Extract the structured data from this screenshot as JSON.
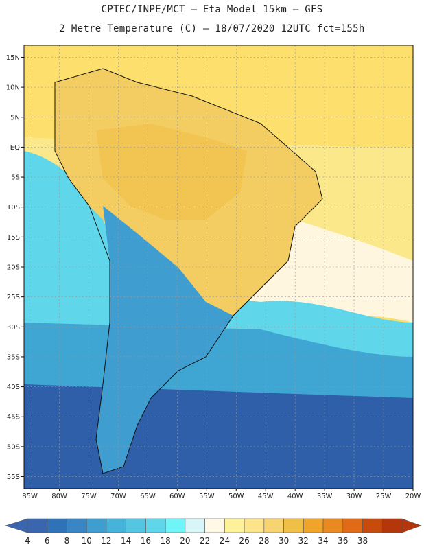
{
  "title_line1": "CPTEC/INPE/MCT –  Eta Model 15km – GFS",
  "title_line2": "2 Metre Temperature (C) – 18/07/2020 12UTC fct=155h",
  "lat_labels": [
    "15N",
    "10N",
    "5N",
    "EQ",
    "5S",
    "10S",
    "15S",
    "20S",
    "25S",
    "30S",
    "35S",
    "40S",
    "45S",
    "50S",
    "55S"
  ],
  "lon_labels": [
    "85W",
    "80W",
    "75W",
    "70W",
    "65W",
    "60W",
    "55W",
    "50W",
    "45W",
    "40W",
    "35W",
    "30W",
    "25W",
    "20W"
  ],
  "colorbar": {
    "labels": [
      "4",
      "6",
      "8",
      "10",
      "12",
      "14",
      "16",
      "18",
      "20",
      "22",
      "24",
      "26",
      "28",
      "30",
      "32",
      "34",
      "36",
      "38"
    ],
    "colors": [
      "#3a66b0",
      "#2f72b8",
      "#3a86c4",
      "#3f9dd0",
      "#46b3da",
      "#54c6e2",
      "#5fd6ea",
      "#6ff4f7",
      "#d8f6f8",
      "#fff8e6",
      "#fdf29a",
      "#fce48a",
      "#f8d372",
      "#f0bf46",
      "#f0a52a",
      "#e98a20",
      "#e06a16",
      "#c84a0c",
      "#b5360a"
    ]
  },
  "fills": {
    "ocean_warm": "#fddf6e",
    "ocean_tropical": "#fbe88a",
    "ocean_mild": "#fff6df",
    "ocean_cool": "#5fd6ea",
    "ocean_cold": "#3fa5d2",
    "ocean_deep": "#2f5fa8",
    "land_hot": "#f2c452",
    "land_warm": "#f4cd62",
    "land_cold": "#3f9dd0",
    "border": "#111111"
  }
}
